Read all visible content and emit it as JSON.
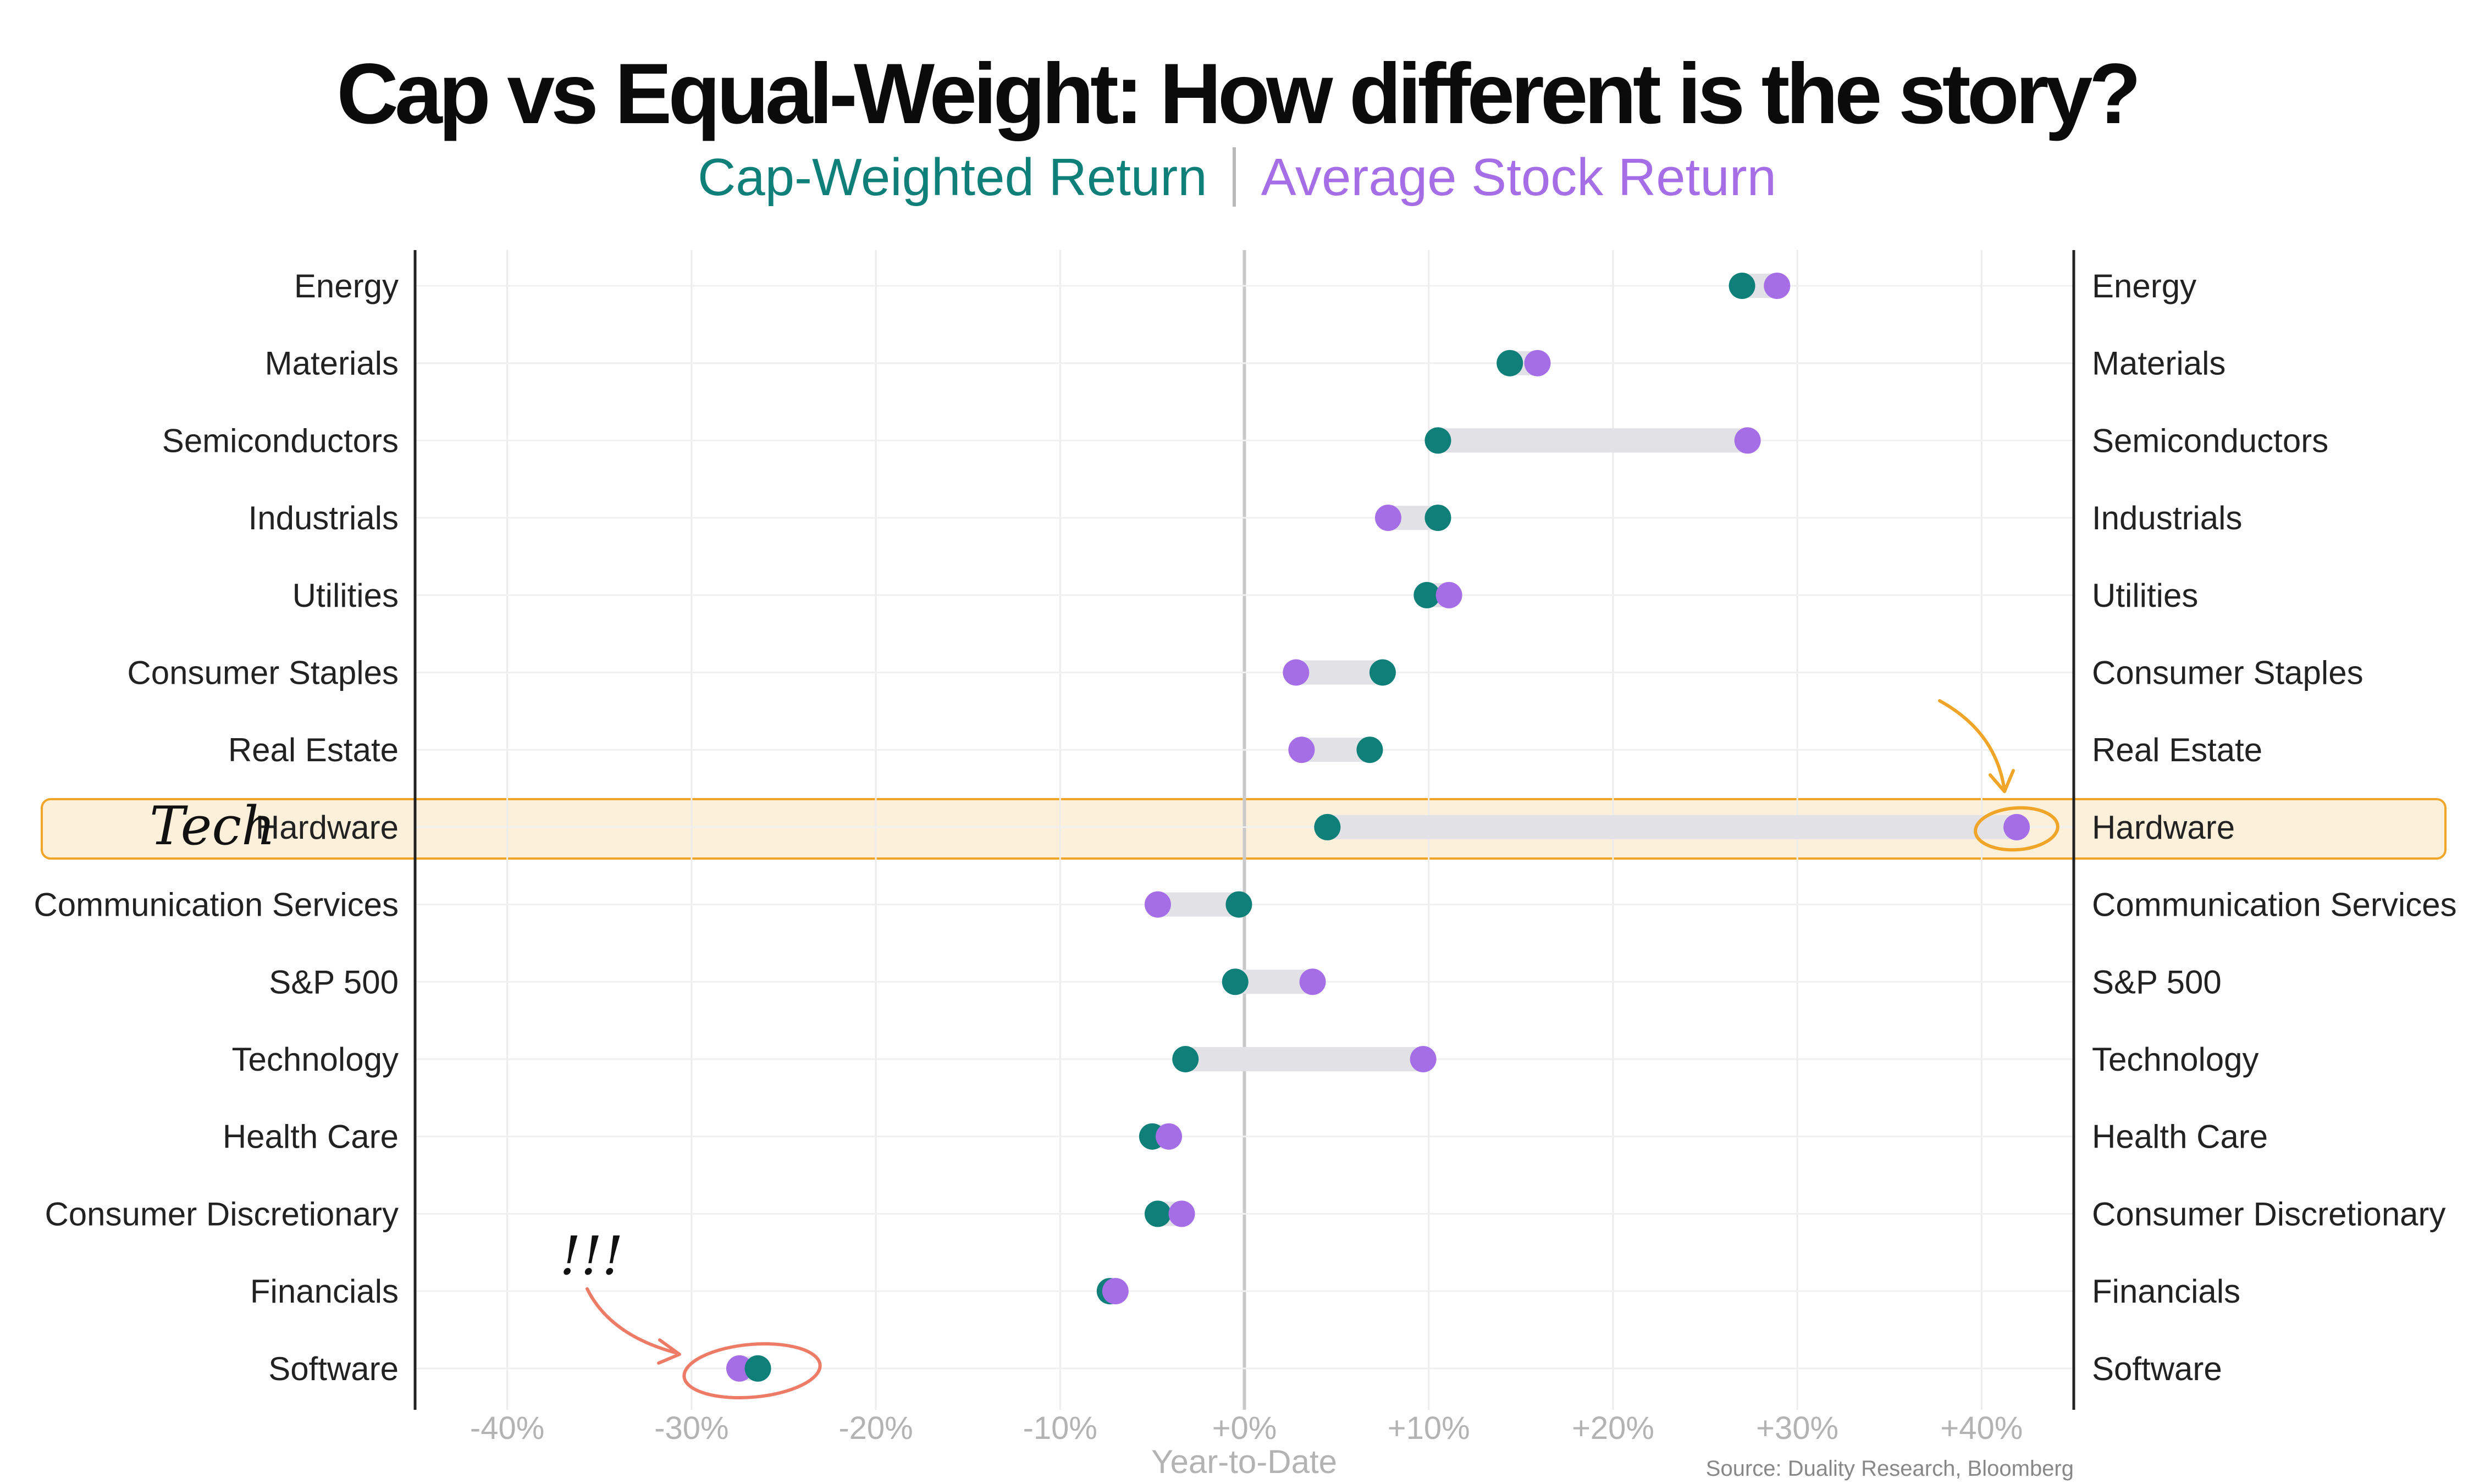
{
  "title": "Cap vs Equal-Weight: How different is the story?",
  "legend": {
    "cap_label": "Cap-Weighted Return",
    "avg_label": "Average Stock Return"
  },
  "annotations": {
    "tech_note": "Tech",
    "exclaim": "!!!"
  },
  "source": "Source: Duality Research, Bloomberg",
  "colors": {
    "cap": "#0f7f7a",
    "avg": "#a56ee6",
    "range": "#e1e1e6",
    "highlight_fill": "#fdf0da",
    "highlight_stroke": "#f0a528",
    "orange_arrow": "#f0a528",
    "red_mark": "#ee7b66"
  },
  "chart_data": {
    "type": "dumbbell",
    "title": "Cap vs Equal-Weight: How different is the story?",
    "xlabel": "Year-to-Date",
    "xlim": [
      -45,
      45
    ],
    "xticks": [
      -40,
      -30,
      -20,
      -10,
      0,
      10,
      20,
      30,
      40
    ],
    "xtick_labels": [
      "-40%",
      "-30%",
      "-20%",
      "-10%",
      "+0%",
      "+10%",
      "+20%",
      "+30%",
      "+40%"
    ],
    "grid": true,
    "highlight_category": "Hardware",
    "series": [
      {
        "name": "Cap-Weighted Return",
        "values": [
          27.0,
          14.4,
          10.5,
          10.5,
          9.9,
          7.5,
          6.8,
          4.5,
          -0.3,
          -0.5,
          -3.2,
          -5.0,
          -4.7,
          -7.3,
          -26.4
        ]
      },
      {
        "name": "Average Stock Return",
        "values": [
          28.9,
          15.9,
          27.3,
          7.8,
          11.1,
          2.8,
          3.1,
          41.9,
          -4.7,
          3.7,
          9.7,
          -4.1,
          -3.4,
          -7.0,
          -27.4
        ]
      }
    ],
    "categories": [
      "Energy",
      "Materials",
      "Semiconductors",
      "Industrials",
      "Utilities",
      "Consumer Staples",
      "Real Estate",
      "Hardware",
      "Communication Services",
      "S&P 500",
      "Technology",
      "Health Care",
      "Consumer Discretionary",
      "Financials",
      "Software"
    ]
  }
}
